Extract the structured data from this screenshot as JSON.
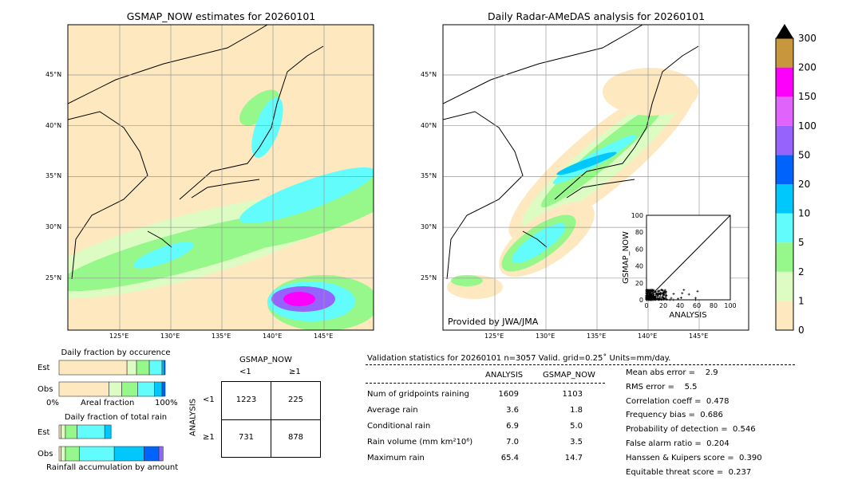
{
  "left_map": {
    "title": "GSMAP_NOW estimates for 20260101"
  },
  "right_map": {
    "title": "Daily Radar-AMeDAS analysis for 20260101",
    "credit": "Provided by JWA/JMA"
  },
  "lon_ticks": [
    "125°E",
    "130°E",
    "135°E",
    "140°E",
    "145°E"
  ],
  "lat_ticks": [
    "45°N",
    "40°N",
    "35°N",
    "30°N",
    "25°N"
  ],
  "colorbar": {
    "labels": [
      "0",
      "1",
      "2",
      "5",
      "10",
      "20",
      "50",
      "100",
      "150",
      "200",
      "300"
    ],
    "colors": [
      "#fee8c0",
      "#dcfcc4",
      "#96f88a",
      "#62fcfc",
      "#00c8fc",
      "#0064fc",
      "#9664fc",
      "#e064fc",
      "#fc00fc",
      "#c8963c"
    ]
  },
  "chart_data": {
    "type": "scatter",
    "title": "",
    "xlabel": "ANALYSIS",
    "ylabel": "GSMAP_NOW",
    "xlim": [
      0,
      100
    ],
    "ylim": [
      0,
      100
    ],
    "ticks": [
      "0",
      "20",
      "40",
      "60",
      "80",
      "100"
    ],
    "points_note": "dense cluster near origin with x up to ~65, y up to ~15"
  },
  "occurrence": {
    "title": "Daily fraction by occurence",
    "est_label": "Est",
    "obs_label": "Obs",
    "x_left": "0%",
    "x_mid": "Areal fraction",
    "x_right": "100%",
    "est": [
      0.64,
      0.09,
      0.12,
      0.12,
      0.02,
      0.01
    ],
    "obs": [
      0.47,
      0.12,
      0.15,
      0.16,
      0.07,
      0.03
    ]
  },
  "total_rain": {
    "title": "Daily fraction of total rain",
    "est_label": "Est",
    "obs_label": "Obs",
    "xlabel": "Rainfall accumulation by amount",
    "est": [
      0.02,
      0.04,
      0.11,
      0.26,
      0.06,
      0,
      0
    ],
    "obs": [
      0.02,
      0.04,
      0.13,
      0.33,
      0.28,
      0.14,
      0.04
    ]
  },
  "contingency": {
    "title": "GSMAP_NOW",
    "col_lt": "<1",
    "col_ge": "≥1",
    "row_title": "ANALYSIS",
    "row_lt": "<1",
    "row_ge": "≥1",
    "a": "1223",
    "b": "225",
    "c": "731",
    "d": "878"
  },
  "stats": {
    "header": "Validation statistics for 20260101  n=3057 Valid. grid=0.25˚ Units=mm/day.",
    "col1": "ANALYSIS",
    "col2": "GSMAP_NOW",
    "rows": [
      {
        "label": "Num of gridpoints raining",
        "a": "1609",
        "g": "1103"
      },
      {
        "label": "Average rain",
        "a": "3.6",
        "g": "1.8"
      },
      {
        "label": "Conditional rain",
        "a": "6.9",
        "g": "5.0"
      },
      {
        "label": "Rain volume (mm km²10⁶)",
        "a": "7.0",
        "g": "3.5"
      },
      {
        "label": "Maximum rain",
        "a": "65.4",
        "g": "14.7"
      }
    ],
    "scores": [
      "Mean abs error =    2.9",
      "RMS error =    5.5",
      "Correlation coeff =  0.478",
      "Frequency bias =  0.686",
      "Probability of detection =  0.546",
      "False alarm ratio =  0.204",
      "Hanssen & Kuipers score =  0.390",
      "Equitable threat score =  0.237"
    ]
  }
}
